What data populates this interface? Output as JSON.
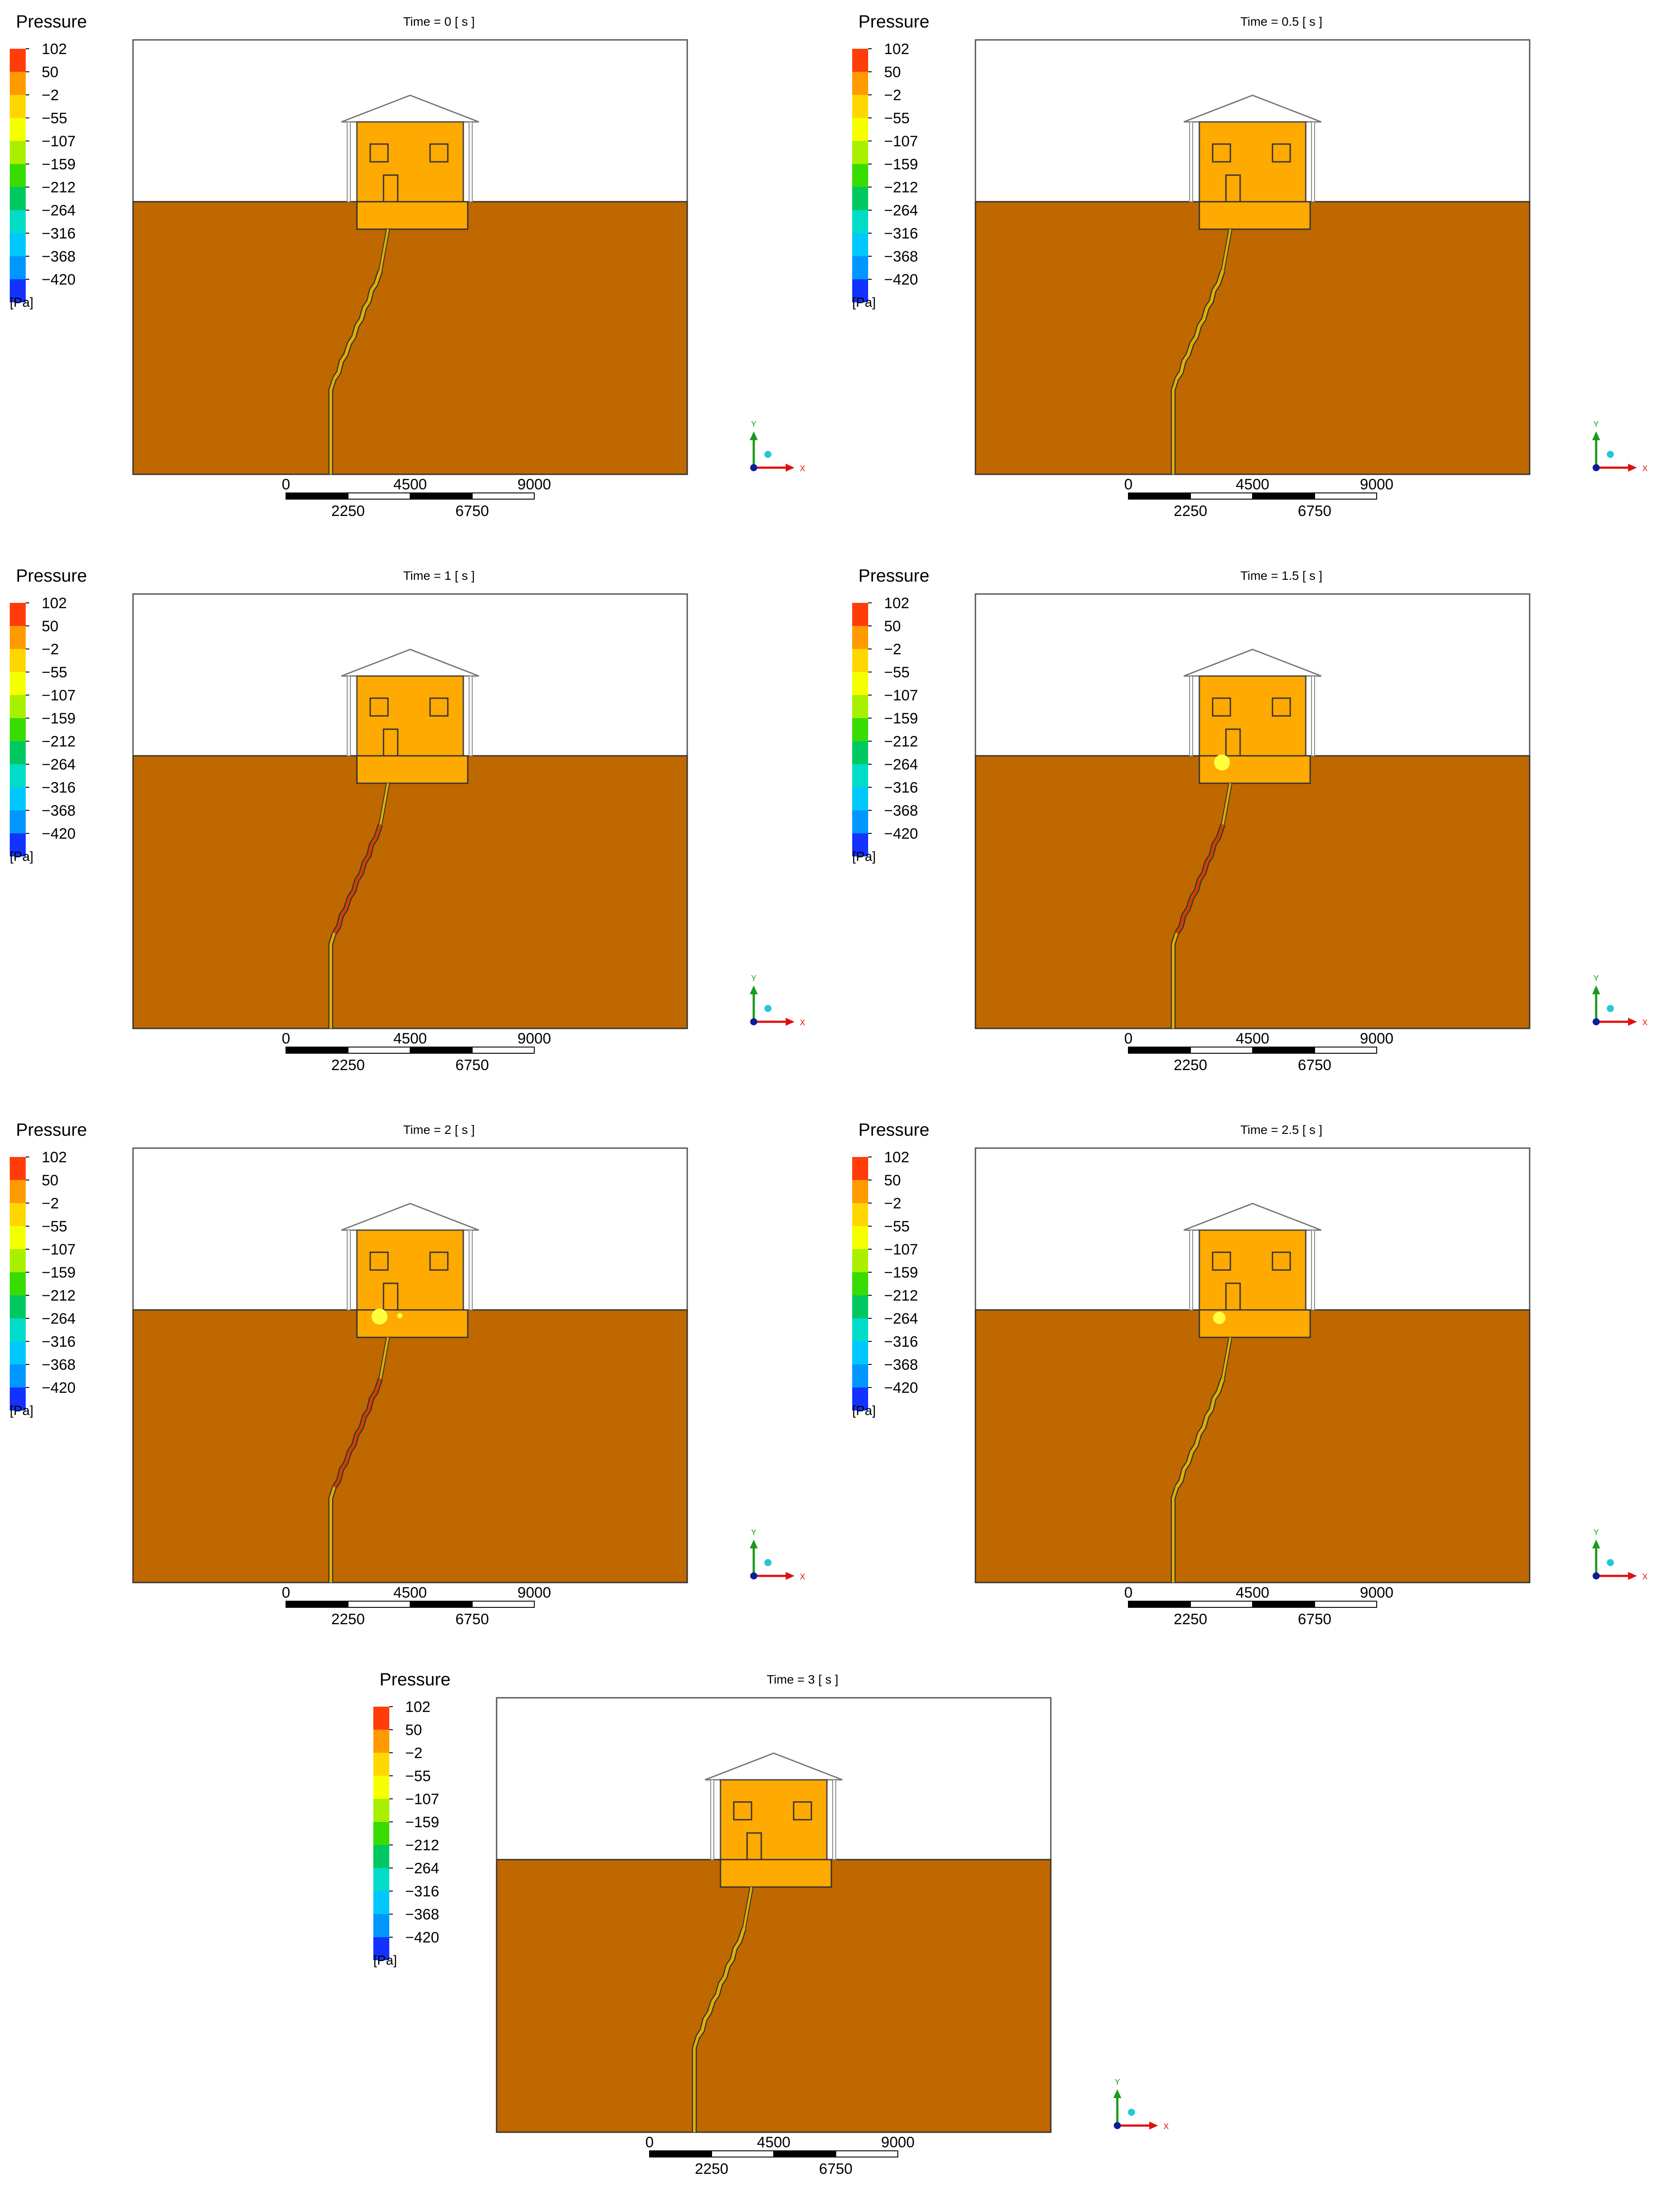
{
  "legend": {
    "title": "Pressure",
    "unit": "[Pa]",
    "ticks": [
      "102",
      "50",
      "−2",
      "−55",
      "−107",
      "−159",
      "−212",
      "−264",
      "−316",
      "−368",
      "−420"
    ],
    "colors": [
      "#ff3c0a",
      "#ff9a00",
      "#ffd700",
      "#f5ff00",
      "#a8f000",
      "#38dc00",
      "#00c860",
      "#00dcc8",
      "#00c8ff",
      "#0096ff",
      "#1432ff"
    ]
  },
  "scale_bar": {
    "top_labels": [
      "0",
      "4500",
      "9000"
    ],
    "bottom_labels": [
      "2250",
      "6750"
    ]
  },
  "axis_triad": {
    "y": "Y",
    "x": "X"
  },
  "colors": {
    "soil": "#bf6800",
    "house": "#ffaa00",
    "sky": "#ffffff",
    "crack_normal": "#e0b000",
    "crack_high": "#d04000",
    "plume": "#ffff40"
  },
  "panels": [
    {
      "time_label": "Time = 0 [ s ]",
      "crack_state": "normal",
      "plumes": []
    },
    {
      "time_label": "Time = 0.5 [ s ]",
      "crack_state": "normal",
      "plumes": []
    },
    {
      "time_label": "Time = 1 [ s ]",
      "crack_state": "high",
      "plumes": []
    },
    {
      "time_label": "Time = 1.5 [ s ]",
      "crack_state": "high",
      "plumes": [
        "large"
      ]
    },
    {
      "time_label": "Time = 2 [ s ]",
      "crack_state": "high",
      "plumes": [
        "large",
        "small"
      ]
    },
    {
      "time_label": "Time = 2.5 [ s ]",
      "crack_state": "normal",
      "plumes": [
        "medium"
      ]
    },
    {
      "time_label": "Time = 3 [ s ]",
      "crack_state": "normal",
      "plumes": []
    }
  ]
}
